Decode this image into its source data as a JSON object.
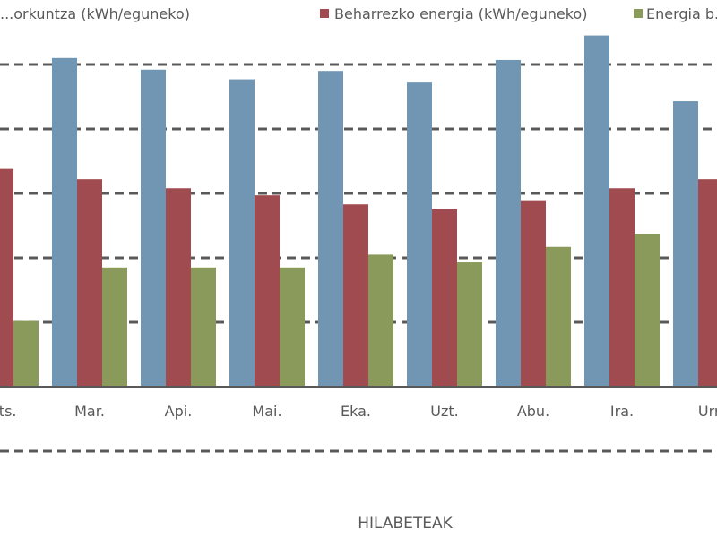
{
  "chart_data": {
    "type": "bar",
    "categories": [
      "...ts.",
      "Mar.",
      "Api.",
      "Mai.",
      "Eka.",
      "Uzt.",
      "Abu.",
      "Ira.",
      "Urr."
    ],
    "series": [
      {
        "name": "...orkuntza (kWh/eguneko)",
        "color": "#7096b4",
        "values": [
          null,
          5.1,
          4.92,
          4.77,
          4.9,
          4.72,
          5.07,
          5.45,
          4.43
        ]
      },
      {
        "name": "Beharrezko energia (kWh/eguneko)",
        "color": "#a04b4f",
        "values": [
          3.38,
          3.22,
          3.08,
          2.97,
          2.83,
          2.75,
          2.88,
          3.08,
          3.22
        ]
      },
      {
        "name": "Energia b...",
        "color": "#8a9a5b",
        "values": [
          1.02,
          1.85,
          1.85,
          1.85,
          2.05,
          1.93,
          2.17,
          2.37,
          null
        ]
      }
    ],
    "xlabel": "HILABETEAK",
    "ylabel": "",
    "ylim": [
      0,
      6
    ],
    "grid": true,
    "legend_position": "top"
  }
}
